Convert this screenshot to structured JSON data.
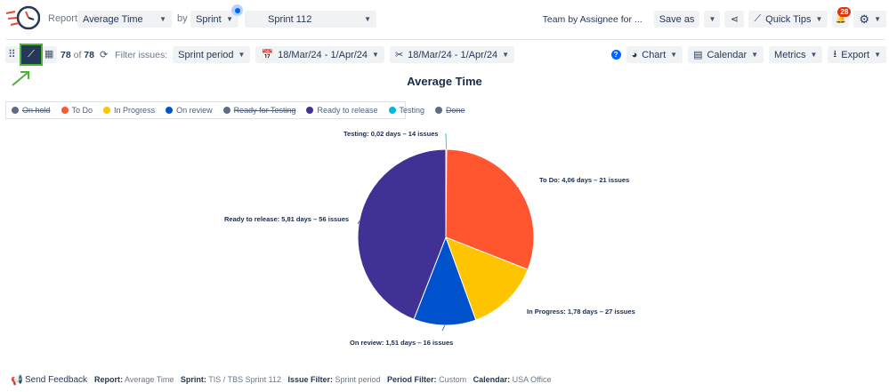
{
  "header": {
    "report_label": "Report:",
    "report_value": "Average Time",
    "by_label": "by",
    "by_value": "Sprint",
    "sprint_value": "Sprint 112",
    "saved_report": "Team by Assignee for ...",
    "save_as": "Save as",
    "quick_tips": "Quick Tips",
    "notification_count": "28"
  },
  "toolbar": {
    "count": "78",
    "of": "of",
    "total": "78",
    "filter_label": "Filter issues:",
    "filter_value": "Sprint period",
    "date_range_1": "18/Mar/24 - 1/Apr/24",
    "date_range_2": "18/Mar/24 - 1/Apr/24",
    "chart": "Chart",
    "calendar": "Calendar",
    "metrics": "Metrics",
    "export": "Export"
  },
  "legend": [
    {
      "label": "On hold",
      "color": "#5e6c84",
      "hidden": true
    },
    {
      "label": "To Do",
      "color": "#ff5630",
      "hidden": false
    },
    {
      "label": "In Progress",
      "color": "#ffc400",
      "hidden": false
    },
    {
      "label": "On review",
      "color": "#0052cc",
      "hidden": false
    },
    {
      "label": "Ready for Testing",
      "color": "#5e6c84",
      "hidden": true
    },
    {
      "label": "Ready to release",
      "color": "#403294",
      "hidden": false
    },
    {
      "label": "Testing",
      "color": "#00b8d9",
      "hidden": false
    },
    {
      "label": "Done",
      "color": "#5e6c84",
      "hidden": true
    }
  ],
  "chart_data": {
    "type": "pie",
    "title": "Average Time",
    "slices": [
      {
        "name": "Testing",
        "value": 0.02,
        "issues": 14,
        "color": "#00b8d9",
        "label": "Testing: 0,02 days – 14 issues"
      },
      {
        "name": "To Do",
        "value": 4.06,
        "issues": 21,
        "color": "#ff5630",
        "label": "To Do: 4,06 days – 21 issues"
      },
      {
        "name": "In Progress",
        "value": 1.78,
        "issues": 27,
        "color": "#ffc400",
        "label": "In Progress: 1,78 days – 27 issues"
      },
      {
        "name": "On review",
        "value": 1.51,
        "issues": 16,
        "color": "#0052cc",
        "label": "On review: 1,51 days – 16 issues"
      },
      {
        "name": "Ready to release",
        "value": 5.81,
        "issues": 56,
        "color": "#403294",
        "label": "Ready to release: 5,81 days – 56 issues"
      }
    ]
  },
  "footer": {
    "feedback": "Send Feedback",
    "report_k": "Report:",
    "report_v": "Average Time",
    "sprint_k": "Sprint:",
    "sprint_v": "TIS / TBS Sprint 112",
    "issue_k": "Issue Filter:",
    "issue_v": "Sprint period",
    "period_k": "Period Filter:",
    "period_v": "Custom",
    "calendar_k": "Calendar:",
    "calendar_v": "USA Office"
  }
}
